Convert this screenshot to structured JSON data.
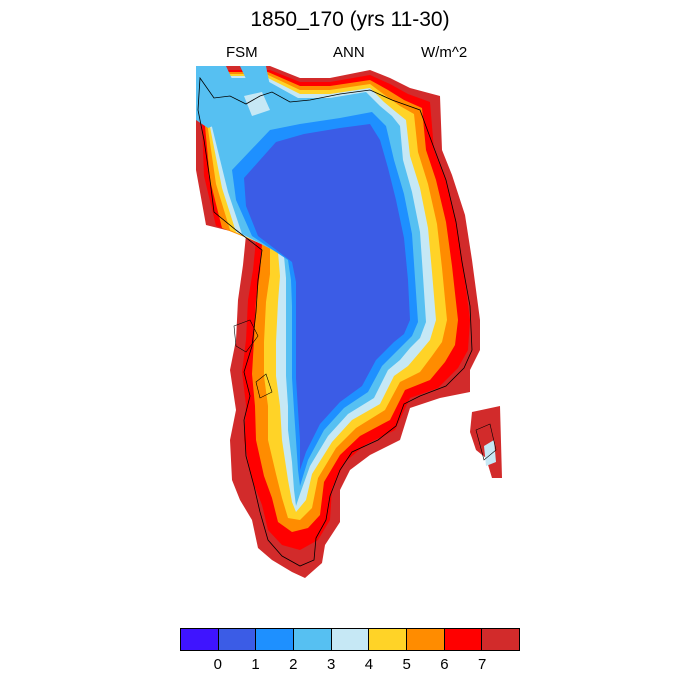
{
  "title": "1850_170 (yrs 11-30)",
  "subtitle": {
    "left": "FSM",
    "center": "ANN",
    "right": "W/m^2"
  },
  "colorbar": {
    "colors": [
      "#3f14ff",
      "#3b5ce6",
      "#1e90ff",
      "#56c0f2",
      "#c6e8f5",
      "#ffd327",
      "#ff8c00",
      "#ff0000",
      "#d22b2b"
    ],
    "tick_labels": [
      "0",
      "1",
      "2",
      "3",
      "4",
      "5",
      "6",
      "7"
    ]
  },
  "map": {
    "region": "Greenland",
    "variable": "FSM",
    "statistic": "ANN",
    "units": "W/m^2",
    "pattern": "interior ice sheet 0-1 W/m^2; coastal margins 3-7 W/m^2, highest in the south and east"
  }
}
